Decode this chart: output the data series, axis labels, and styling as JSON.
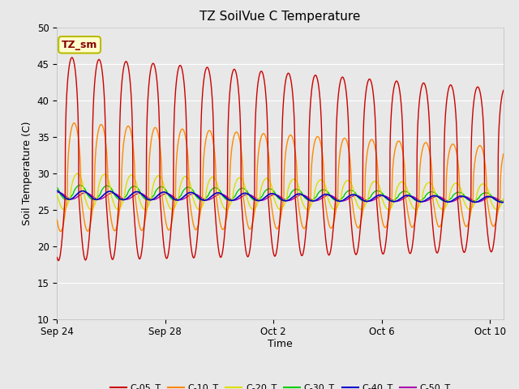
{
  "title": "TZ SoilVue C Temperature",
  "ylabel": "Soil Temperature (C)",
  "xlabel": "Time",
  "annotation": "TZ_sm",
  "ylim": [
    10,
    50
  ],
  "yticks": [
    10,
    15,
    20,
    25,
    30,
    35,
    40,
    45,
    50
  ],
  "xlim": [
    0,
    16.5
  ],
  "x_tick_labels": [
    "Sep 24",
    "Sep 28",
    "Oct 2",
    "Oct 6",
    "Oct 10"
  ],
  "x_tick_days": [
    0,
    4,
    8,
    12,
    16
  ],
  "bg_color": "#e8e8e8",
  "plot_bg_color": "#e8e8e8",
  "series_colors": [
    "#cc0000",
    "#ff8800",
    "#dddd00",
    "#00cc00",
    "#0000cc",
    "#aa00aa"
  ],
  "series_names": [
    "C-05_T",
    "C-10_T",
    "C-20_T",
    "C-30_T",
    "C-40_T",
    "C-50_T"
  ],
  "title_fontsize": 11,
  "label_fontsize": 9,
  "tick_fontsize": 8.5,
  "legend_fontsize": 8
}
